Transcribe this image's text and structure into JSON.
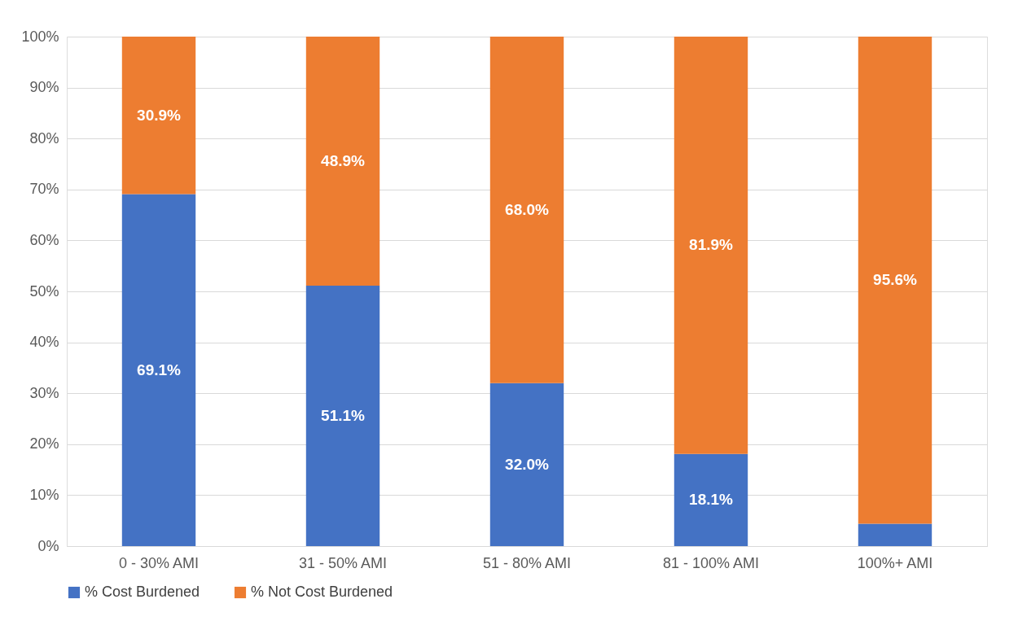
{
  "chart_data": {
    "type": "bar",
    "stacked": true,
    "categories": [
      "0 - 30% AMI",
      "31 - 50% AMI",
      "51 - 80% AMI",
      "81 - 100% AMI",
      "100%+ AMI"
    ],
    "series": [
      {
        "name": "% Cost Burdened",
        "color": "#4472c4",
        "values": [
          69.1,
          51.1,
          32.0,
          18.1,
          4.4
        ],
        "value_labels": [
          "69.1%",
          "51.1%",
          "32.0%",
          "18.1%",
          null
        ]
      },
      {
        "name": "% Not Cost Burdened",
        "color": "#ed7d31",
        "values": [
          30.9,
          48.9,
          68.0,
          81.9,
          95.6
        ],
        "value_labels": [
          "30.9%",
          "48.9%",
          "68.0%",
          "81.9%",
          "95.6%"
        ]
      }
    ],
    "ylim": [
      0,
      100
    ],
    "yticks": [
      {
        "value": 0,
        "label": "0%"
      },
      {
        "value": 10,
        "label": "10%"
      },
      {
        "value": 20,
        "label": "20%"
      },
      {
        "value": 30,
        "label": "30%"
      },
      {
        "value": 40,
        "label": "40%"
      },
      {
        "value": 50,
        "label": "50%"
      },
      {
        "value": 60,
        "label": "60%"
      },
      {
        "value": 70,
        "label": "70%"
      },
      {
        "value": 80,
        "label": "80%"
      },
      {
        "value": 90,
        "label": "90%"
      },
      {
        "value": 100,
        "label": "100%"
      }
    ],
    "grid": "y",
    "legend": "bottom"
  }
}
